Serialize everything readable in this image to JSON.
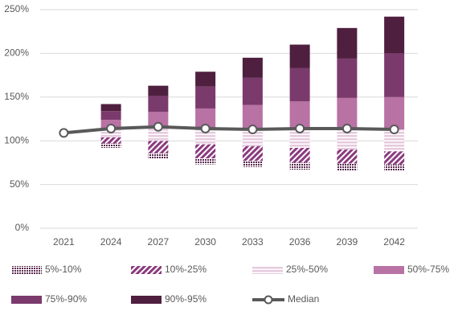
{
  "chart_data": {
    "type": "fan",
    "categories": [
      "2021",
      "2024",
      "2027",
      "2030",
      "2033",
      "2036",
      "2039",
      "2042"
    ],
    "base": [
      null,
      92,
      79,
      73,
      70,
      67,
      66,
      66
    ],
    "series": [
      {
        "name": "5%-10%",
        "color": "#5b2a4f",
        "pattern": "dots",
        "values": [
          null,
          5,
          7,
          7,
          7,
          8,
          8,
          7
        ]
      },
      {
        "name": "10%-25%",
        "color": "#8b3a7e",
        "pattern": "diagonal",
        "values": [
          null,
          7,
          14,
          16,
          17,
          17,
          16,
          15
        ]
      },
      {
        "name": "25%-50%",
        "color": "#e6cade",
        "pattern": "horizontal",
        "values": [
          null,
          10,
          16,
          18,
          19,
          22,
          24,
          25
        ]
      },
      {
        "name": "50%-75%",
        "color": "#b872a4",
        "pattern": "solid",
        "values": [
          null,
          10,
          17,
          23,
          28,
          31,
          35,
          37
        ]
      },
      {
        "name": "75%-90%",
        "color": "#7b3a6c",
        "pattern": "solid",
        "values": [
          null,
          10,
          18,
          25,
          31,
          38,
          45,
          50
        ]
      },
      {
        "name": "90%-95%",
        "color": "#4f1f3f",
        "pattern": "solid",
        "values": [
          null,
          8,
          12,
          17,
          23,
          27,
          35,
          42
        ]
      }
    ],
    "median": {
      "name": "Median",
      "color": "#595959",
      "values": [
        109,
        114,
        116,
        114,
        113,
        114,
        114,
        113
      ]
    },
    "ylim": [
      0,
      250
    ],
    "yticks": [
      {
        "value": 0,
        "label": "0%"
      },
      {
        "value": 50,
        "label": "50%"
      },
      {
        "value": 100,
        "label": "100%"
      },
      {
        "value": 150,
        "label": "150%"
      },
      {
        "value": 200,
        "label": "200%"
      },
      {
        "value": 250,
        "label": "250%"
      }
    ],
    "grid": true
  }
}
